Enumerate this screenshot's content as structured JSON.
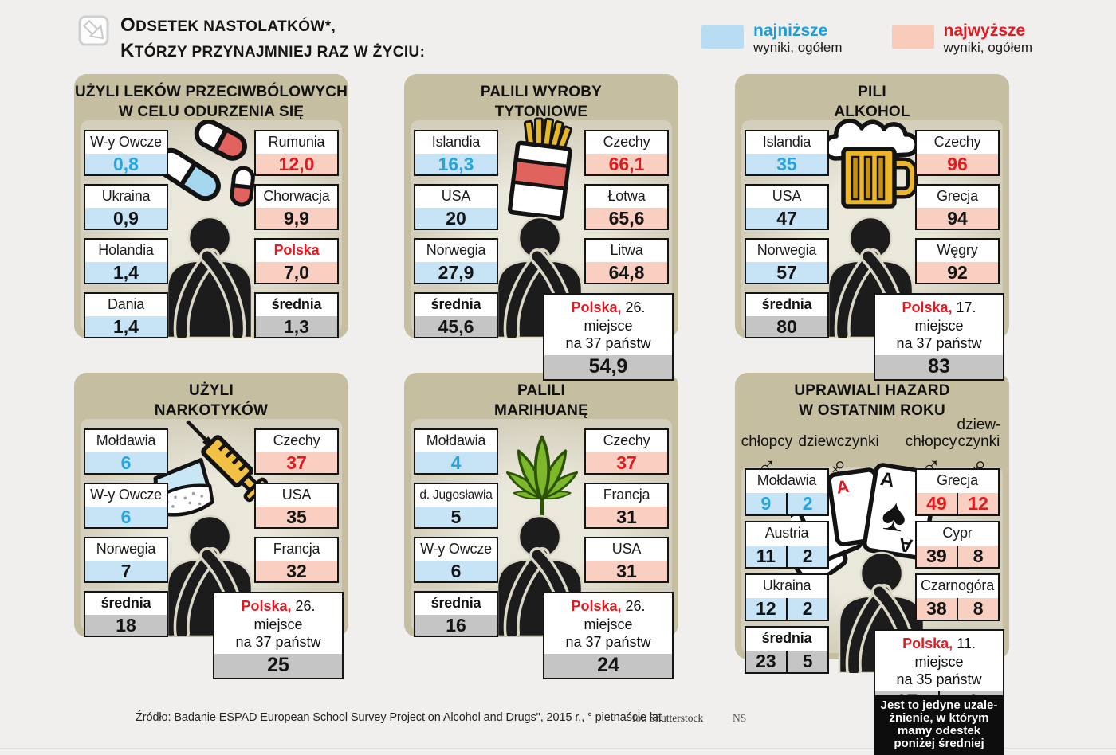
{
  "header": {
    "title_line1": "ODSETEK NASTOLATKÓW*,",
    "title_line2": "KTÓRZY PRZYNAJMNIEJ RAZ W ŻYCIU:"
  },
  "legend": {
    "low_label": "najniższe",
    "low_sub": "wyniki, ogółem",
    "high_label": "najwyższe",
    "high_sub": "wyniki, ogółem"
  },
  "colors": {
    "low_fill": "#c7e4f6",
    "high_fill": "#f8cfc1",
    "mean_fill": "#c5c5c5",
    "low_text": "#25a5de",
    "high_text": "#e01a20",
    "panel": "#c5bea1"
  },
  "chart_data": [
    {
      "type": "table",
      "title": "UŻYLI LEKÓW PRZECIWBÓLOWYCH W CELU ODURZENIA SIĘ",
      "lowest": [
        [
          "W-y Owcze",
          0.8
        ],
        [
          "Ukraina",
          0.9
        ],
        [
          "Holandia",
          1.4
        ],
        [
          "Dania",
          1.4
        ]
      ],
      "highest": [
        [
          "Rumunia",
          12.0
        ],
        [
          "Chorwacja",
          9.9
        ],
        [
          "Polska",
          7.0
        ]
      ],
      "mean": 1.3
    },
    {
      "type": "table",
      "title": "PALILI WYROBY TYTONIOWE",
      "lowest": [
        [
          "Islandia",
          16.3
        ],
        [
          "USA",
          20
        ],
        [
          "Norwegia",
          27.9
        ]
      ],
      "highest": [
        [
          "Czechy",
          66.1
        ],
        [
          "Łotwa",
          65.6
        ],
        [
          "Litwa",
          64.8
        ]
      ],
      "mean": 45.6,
      "polska": {
        "value": 54.9,
        "rank": "26. miejsce na 37 państw"
      }
    },
    {
      "type": "table",
      "title": "PILI ALKOHOL",
      "lowest": [
        [
          "Islandia",
          35
        ],
        [
          "USA",
          47
        ],
        [
          "Norwegia",
          57
        ]
      ],
      "highest": [
        [
          "Czechy",
          96
        ],
        [
          "Grecja",
          94
        ],
        [
          "Węgry",
          92
        ]
      ],
      "mean": 80,
      "polska": {
        "value": 83,
        "rank": "17. miejsce na 37 państw"
      }
    },
    {
      "type": "table",
      "title": "UŻYLI NARKOTYKÓW",
      "lowest": [
        [
          "Mołdawia",
          6
        ],
        [
          "W-y Owcze",
          6
        ],
        [
          "Norwegia",
          7
        ]
      ],
      "highest": [
        [
          "Czechy",
          37
        ],
        [
          "USA",
          35
        ],
        [
          "Francja",
          32
        ]
      ],
      "mean": 18,
      "polska": {
        "value": 25,
        "rank": "26. miejsce na 37 państw"
      }
    },
    {
      "type": "table",
      "title": "PALILI MARIHUANĘ",
      "lowest": [
        [
          "Mołdawia",
          4
        ],
        [
          "d. Jugosławia",
          5
        ],
        [
          "W-y Owcze",
          6
        ]
      ],
      "highest": [
        [
          "Czechy",
          37
        ],
        [
          "Francja",
          31
        ],
        [
          "USA",
          31
        ]
      ],
      "mean": 16,
      "polska": {
        "value": 24,
        "rank": "26. miejsce na 37 państw"
      }
    },
    {
      "type": "table",
      "title": "UPRAWIALI HAZARD W OSTATNIM ROKU",
      "columns": [
        "chłopcy",
        "dziewczynki"
      ],
      "lowest": [
        [
          "Mołdawia",
          9,
          2
        ],
        [
          "Austria",
          11,
          2
        ],
        [
          "Ukraina",
          12,
          2
        ]
      ],
      "highest": [
        [
          "Grecja",
          49,
          12
        ],
        [
          "Cypr",
          39,
          8
        ],
        [
          "Czarnogóra",
          38,
          8
        ]
      ],
      "mean": [
        23,
        5
      ],
      "polska": {
        "values": [
          17,
          4
        ],
        "rank": "11. miejsce na 35 państw"
      }
    }
  ],
  "panels": [
    {
      "id": "painkillers",
      "icon": "pills-icon",
      "title_line1": "UŻYLI LEKÓW PRZECIWBÓLOWYCH",
      "title_line2": "W CELU ODURZENIA SIĘ",
      "left_boxes": [
        {
          "country": "W-y Owcze",
          "value": "0,8",
          "highlight": "blue"
        },
        {
          "country": "Ukraina",
          "value": "0,9"
        },
        {
          "country": "Holandia",
          "value": "1,4"
        },
        {
          "country": "Dania",
          "value": "1,4"
        }
      ],
      "right_boxes": [
        {
          "country": "Rumunia",
          "value": "12,0",
          "highlight": "red"
        },
        {
          "country": "Chorwacja",
          "value": "9,9"
        },
        {
          "country": "Polska",
          "value": "7,0",
          "label_red": true
        },
        {
          "country": "średnia",
          "value": "1,3",
          "mean": true
        }
      ]
    },
    {
      "id": "tobacco",
      "icon": "cigarettes-icon",
      "title_line1": "PALILI WYROBY",
      "title_line2": "TYTONIOWE",
      "left_boxes": [
        {
          "country": "Islandia",
          "value": "16,3",
          "highlight": "blue"
        },
        {
          "country": "USA",
          "value": "20"
        },
        {
          "country": "Norwegia",
          "value": "27,9"
        },
        {
          "country": "średnia",
          "value": "45,6",
          "mean": true
        }
      ],
      "right_boxes": [
        {
          "country": "Czechy",
          "value": "66,1",
          "highlight": "red"
        },
        {
          "country": "Łotwa",
          "value": "65,6"
        },
        {
          "country": "Litwa",
          "value": "64,8"
        }
      ],
      "polska_box": {
        "name": "Polska,",
        "rank": "26. miejsce",
        "line2": "na 37 państw",
        "value": "54,9"
      }
    },
    {
      "id": "alcohol",
      "icon": "beer-icon",
      "title_line1": "PILI",
      "title_line2": "ALKOHOL",
      "left_boxes": [
        {
          "country": "Islandia",
          "value": "35",
          "highlight": "blue"
        },
        {
          "country": "USA",
          "value": "47"
        },
        {
          "country": "Norwegia",
          "value": "57"
        },
        {
          "country": "średnia",
          "value": "80",
          "mean": true
        }
      ],
      "right_boxes": [
        {
          "country": "Czechy",
          "value": "96",
          "highlight": "red"
        },
        {
          "country": "Grecja",
          "value": "94"
        },
        {
          "country": "Węgry",
          "value": "92"
        }
      ],
      "polska_box": {
        "name": "Polska,",
        "rank": "17. miejsce",
        "line2": "na 37 państw",
        "value": "83"
      }
    },
    {
      "id": "drugs",
      "icon": "syringe-icon",
      "title_line1": "UŻYLI",
      "title_line2": "NARKOTYKÓW",
      "left_boxes": [
        {
          "country": "Mołdawia",
          "value": "6",
          "highlight": "blue"
        },
        {
          "country": "W-y Owcze",
          "value": "6",
          "highlight": "blue"
        },
        {
          "country": "Norwegia",
          "value": "7"
        },
        {
          "country": "średnia",
          "value": "18",
          "mean": true
        }
      ],
      "right_boxes": [
        {
          "country": "Czechy",
          "value": "37",
          "highlight": "red"
        },
        {
          "country": "USA",
          "value": "35"
        },
        {
          "country": "Francja",
          "value": "32"
        }
      ],
      "polska_box": {
        "name": "Polska,",
        "rank": "26. miejsce",
        "line2": "na 37 państw",
        "value": "25"
      }
    },
    {
      "id": "marijuana",
      "icon": "cannabis-icon",
      "title_line1": "PALILI",
      "title_line2": "MARIHUANĘ",
      "left_boxes": [
        {
          "country": "Mołdawia",
          "value": "4",
          "highlight": "blue"
        },
        {
          "country": "d. Jugosławia",
          "value": "5"
        },
        {
          "country": "W-y Owcze",
          "value": "6"
        },
        {
          "country": "średnia",
          "value": "16",
          "mean": true
        }
      ],
      "right_boxes": [
        {
          "country": "Czechy",
          "value": "37",
          "highlight": "red"
        },
        {
          "country": "Francja",
          "value": "31"
        },
        {
          "country": "USA",
          "value": "31"
        }
      ],
      "polska_box": {
        "name": "Polska,",
        "rank": "26. miejsce",
        "line2": "na 37 państw",
        "value": "24"
      }
    },
    {
      "id": "gambling",
      "icon": "cards-icon",
      "title_line1": "UPRAWIALI HAZARD",
      "title_line2": "W OSTATNIM ROKU",
      "gender_columns": [
        {
          "label_lines": [
            "chłopcy"
          ],
          "icon": "male-icon"
        },
        {
          "label_lines": [
            "dziewczynki"
          ],
          "icon": "female-icon"
        },
        {
          "label_lines": [
            "chłopcy"
          ],
          "icon": "male-icon"
        },
        {
          "label_lines": [
            "dziew-",
            "czynki"
          ],
          "icon": "female-icon"
        }
      ],
      "left_boxes": [
        {
          "country": "Mołdawia",
          "values": [
            "9",
            "2"
          ],
          "highlight": "blue"
        },
        {
          "country": "Austria",
          "values": [
            "11",
            "2"
          ]
        },
        {
          "country": "Ukraina",
          "values": [
            "12",
            "2"
          ]
        },
        {
          "country": "średnia",
          "values": [
            "23",
            "5"
          ],
          "mean": true
        }
      ],
      "right_boxes": [
        {
          "country": "Grecja",
          "values": [
            "49",
            "12"
          ],
          "highlight": "red"
        },
        {
          "country": "Cypr",
          "values": [
            "39",
            "8"
          ]
        },
        {
          "country": "Czarnogóra",
          "values": [
            "38",
            "8"
          ]
        }
      ],
      "polska_box": {
        "name": "Polska,",
        "rank": "11. miejsce",
        "line2": "na 35 państw",
        "values": [
          "17",
          "4"
        ]
      },
      "note_lines": [
        "Jest to jedyne uzale-",
        "żnienie, w którym",
        "mamy odestek",
        "poniżej średniej"
      ]
    }
  ],
  "footer": {
    "source": "Źródło: Badanie ESPAD European School Survey Project on Alcohol and Drugs\", 2015 r., ° pietnaście lat",
    "credit": "fot. Shutterstock",
    "initials": "NS"
  }
}
